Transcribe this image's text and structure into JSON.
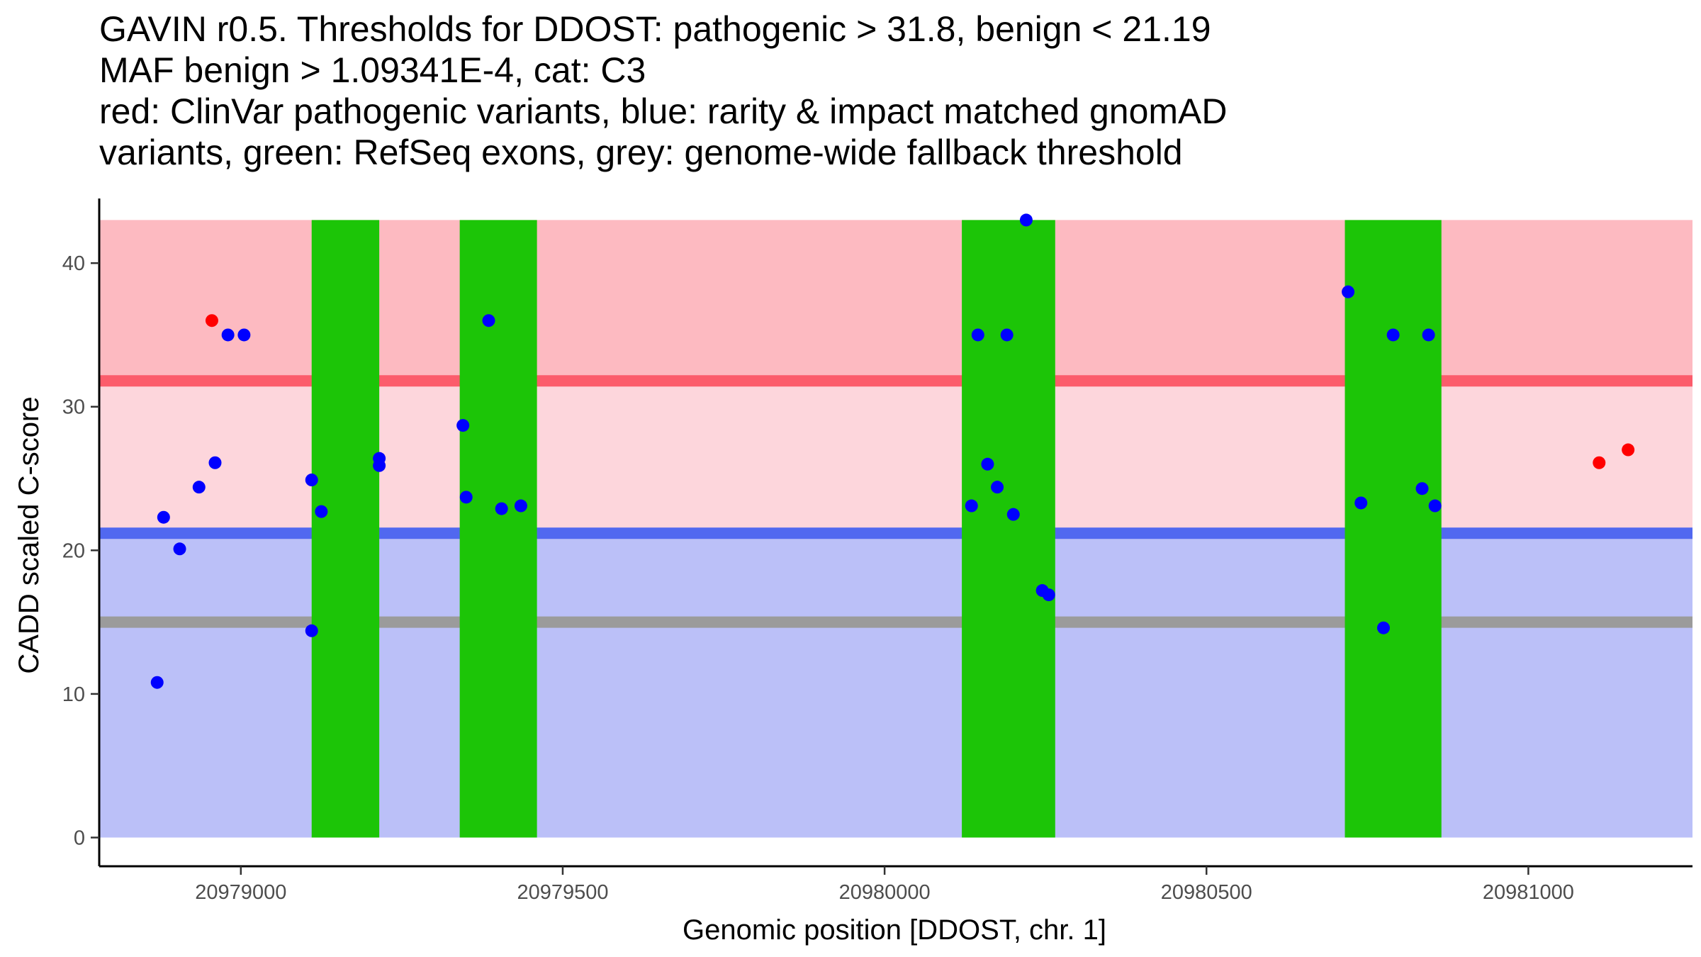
{
  "chart_data": {
    "type": "scatter",
    "title_lines": [
      "GAVIN r0.5. Thresholds for DDOST: pathogenic > 31.8, benign < 21.19",
      "MAF benign > 1.09341E-4, cat: C3",
      "red: ClinVar pathogenic variants, blue: rarity & impact matched gnomAD",
      "variants, green: RefSeq exons, grey: genome-wide fallback threshold"
    ],
    "xlabel": "Genomic position [DDOST, chr. 1]",
    "ylabel": "CADD scaled C-score",
    "xlim": [
      20978780,
      20981255
    ],
    "ylim": [
      -2,
      44.5
    ],
    "x_ticks": [
      20979000,
      20979500,
      20980000,
      20980500,
      20981000
    ],
    "x_tick_labels": [
      "20979000",
      "20979500",
      "20980000",
      "20980500",
      "20981000"
    ],
    "y_ticks": [
      0,
      10,
      20,
      30,
      40
    ],
    "y_tick_labels": [
      "0",
      "10",
      "20",
      "30",
      "40"
    ],
    "bands": [
      {
        "name": "benign-region",
        "y0": 0,
        "y1": 21.19,
        "color": "#bbc0f8"
      },
      {
        "name": "uncertain-region",
        "y0": 21.19,
        "y1": 31.8,
        "color": "#fdd6dc"
      },
      {
        "name": "pathogenic-region",
        "y0": 31.8,
        "y1": 43,
        "color": "#fdbac1"
      }
    ],
    "thresholds": [
      {
        "name": "pathogenic-threshold",
        "value": 31.8,
        "color": "#fc5c6b"
      },
      {
        "name": "benign-threshold",
        "value": 21.19,
        "color": "#5168f0"
      },
      {
        "name": "fallback-threshold",
        "value": 15.0,
        "color": "#9b9b9b"
      }
    ],
    "exons": [
      {
        "start": 20979110,
        "end": 20979215
      },
      {
        "start": 20979340,
        "end": 20979460
      },
      {
        "start": 20980120,
        "end": 20980265
      },
      {
        "start": 20980715,
        "end": 20980865
      }
    ],
    "exon_color": "#1cc507",
    "series": [
      {
        "name": "ClinVar pathogenic",
        "color": "#ff0000",
        "points": [
          [
            20978955,
            36.0
          ],
          [
            20981110,
            26.1
          ],
          [
            20981155,
            27.0
          ]
        ]
      },
      {
        "name": "gnomAD matched",
        "color": "#0000ff",
        "points": [
          [
            20978870,
            10.8
          ],
          [
            20978880,
            22.3
          ],
          [
            20978905,
            20.1
          ],
          [
            20978935,
            24.4
          ],
          [
            20978960,
            26.1
          ],
          [
            20978980,
            35.0
          ],
          [
            20979005,
            35.0
          ],
          [
            20979110,
            24.9
          ],
          [
            20979110,
            14.4
          ],
          [
            20979125,
            22.7
          ],
          [
            20979215,
            26.4
          ],
          [
            20979215,
            25.9
          ],
          [
            20979345,
            28.7
          ],
          [
            20979350,
            23.7
          ],
          [
            20979385,
            36.0
          ],
          [
            20979405,
            22.9
          ],
          [
            20979435,
            23.1
          ],
          [
            20980135,
            23.1
          ],
          [
            20980145,
            35.0
          ],
          [
            20980160,
            26.0
          ],
          [
            20980175,
            24.4
          ],
          [
            20980190,
            35.0
          ],
          [
            20980200,
            22.5
          ],
          [
            20980220,
            43.0
          ],
          [
            20980245,
            17.2
          ],
          [
            20980255,
            16.9
          ],
          [
            20980720,
            38.0
          ],
          [
            20980740,
            23.3
          ],
          [
            20980775,
            14.6
          ],
          [
            20980790,
            35.0
          ],
          [
            20980835,
            24.3
          ],
          [
            20980845,
            35.0
          ],
          [
            20980855,
            23.1
          ]
        ]
      }
    ]
  }
}
